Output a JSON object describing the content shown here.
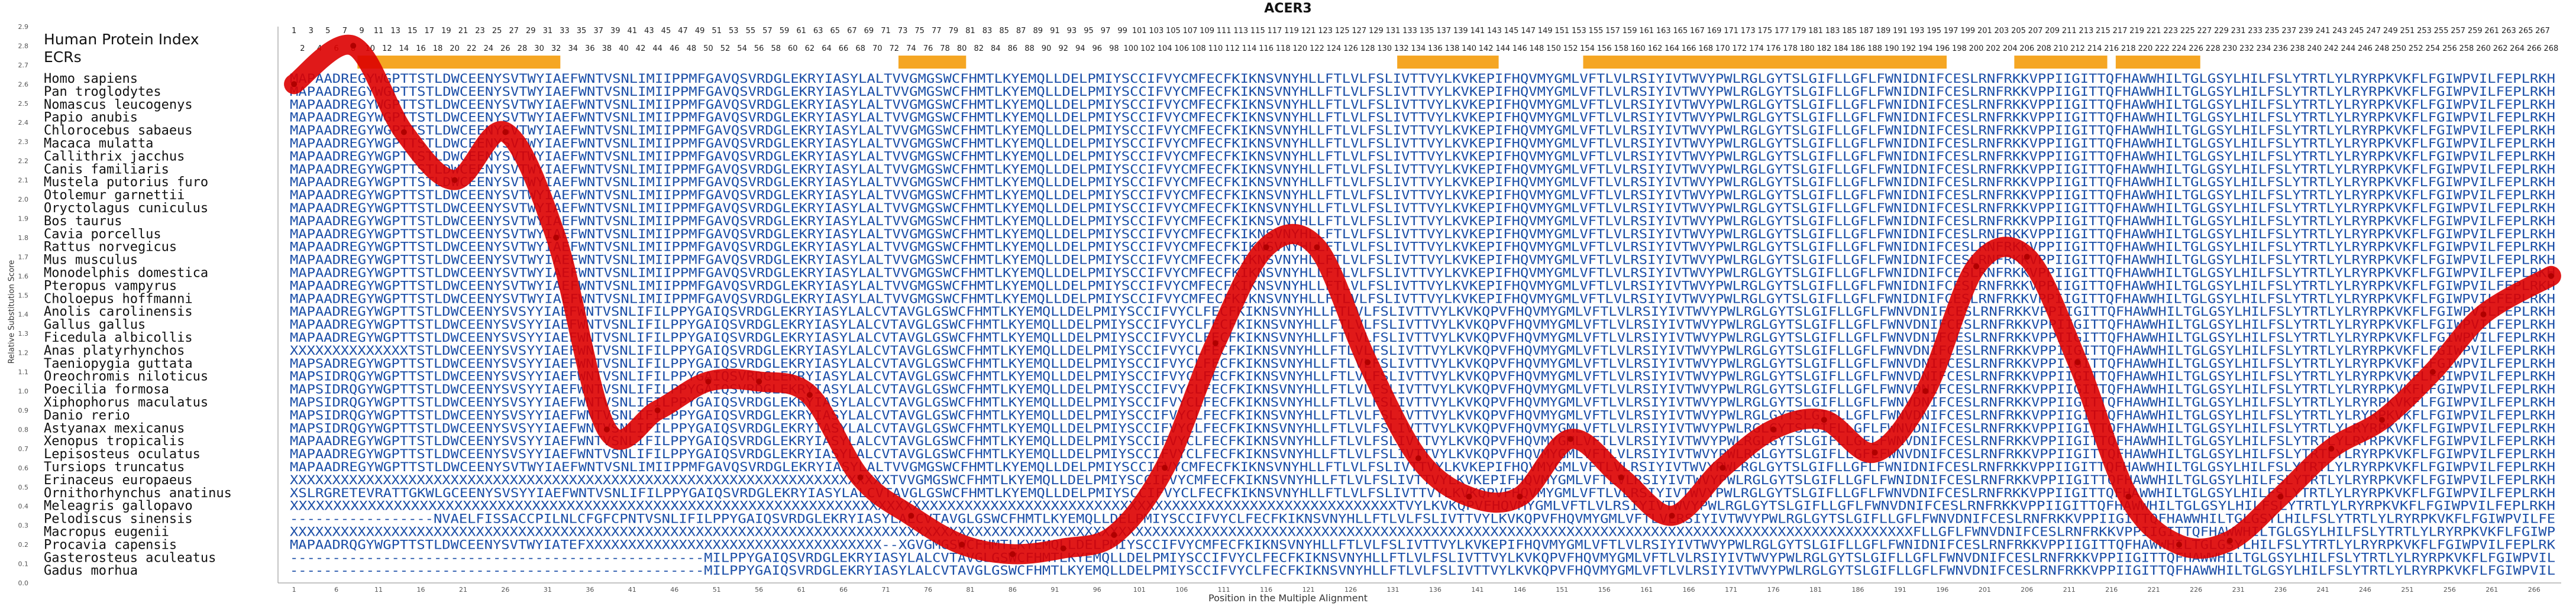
{
  "chart_data": {
    "type": "line",
    "title": "ACER3",
    "xlabel": "Position in the Multiple Alignment",
    "ylabel": "Relative Substitution Score",
    "ylim": [
      0.0,
      2.9
    ],
    "yticks": [
      "0.0",
      "0.1",
      "0.2",
      "0.3",
      "0.4",
      "0.5",
      "0.6",
      "0.7",
      "0.8",
      "0.9",
      "1.0",
      "1.1",
      "1.2",
      "1.3",
      "1.4",
      "1.5",
      "1.6",
      "1.7",
      "1.8",
      "1.9",
      "2.0",
      "2.1",
      "2.2",
      "2.3",
      "2.4",
      "2.5",
      "2.6",
      "2.7",
      "2.8",
      "2.9"
    ],
    "xlim": [
      1,
      268
    ],
    "xticks": [
      1,
      6,
      11,
      16,
      21,
      26,
      31,
      36,
      41,
      46,
      51,
      56,
      61,
      66,
      71,
      76,
      81,
      86,
      91,
      96,
      101,
      106,
      111,
      116,
      121,
      126,
      131,
      136,
      141,
      146,
      151,
      156,
      161,
      166,
      171,
      176,
      181,
      186,
      191,
      196,
      201,
      206,
      211,
      216,
      221,
      226,
      231,
      236,
      241,
      246,
      251,
      256,
      261,
      266
    ],
    "grid": false,
    "row_labels": {
      "top": "Human Protein Index",
      "second": "ECRs"
    },
    "ecr_highlight": [
      [
        9,
        32
      ],
      [
        73,
        80
      ],
      [
        132,
        143
      ],
      [
        154,
        196
      ],
      [
        205,
        215
      ],
      [
        217,
        226
      ]
    ],
    "series": [
      {
        "color": "#dd0000",
        "x": [
          1,
          8,
          14,
          20,
          26,
          32,
          38,
          44,
          50,
          56,
          62,
          68,
          74,
          80,
          86,
          92,
          98,
          104,
          110,
          116,
          122,
          128,
          134,
          140,
          146,
          152,
          158,
          164,
          170,
          176,
          182,
          188,
          194,
          200,
          206,
          212,
          218,
          224,
          230,
          236,
          242,
          248,
          254,
          260,
          268
        ],
        "y": [
          2.6,
          2.8,
          2.35,
          2.1,
          2.35,
          1.8,
          0.8,
          0.9,
          1.05,
          1.05,
          0.98,
          0.55,
          0.35,
          0.2,
          0.15,
          0.18,
          0.25,
          0.6,
          1.25,
          1.75,
          1.75,
          1.15,
          0.65,
          0.45,
          0.45,
          0.75,
          0.55,
          0.35,
          0.6,
          0.8,
          0.85,
          0.68,
          1.0,
          1.65,
          1.7,
          1.15,
          0.45,
          0.2,
          0.22,
          0.45,
          0.7,
          0.85,
          1.1,
          1.4,
          1.6
        ]
      }
    ]
  },
  "species": [
    "Homo sapiens",
    "Pan troglodytes",
    "Nomascus leucogenys",
    "Papio anubis",
    "Chlorocebus sabaeus",
    "Macaca mulatta",
    "Callithrix jacchus",
    "Canis familiaris",
    "Mustela putorius furo",
    "Otolemur garnettii",
    "Oryctolagus cuniculus",
    "Bos taurus",
    "Cavia porcellus",
    "Rattus norvegicus",
    "Mus musculus",
    "Monodelphis domestica",
    "Pteropus vampyrus",
    "Choloepus hoffmanni",
    "Anolis carolinensis",
    "Gallus gallus",
    "Ficedula albicollis",
    "Anas platyrhynchos",
    "Taeniopygia guttata",
    "Oreochromis niloticus",
    "Poecilia formosa",
    "Xiphophorus maculatus",
    "Danio rerio",
    "Astyanax mexicanus",
    "Xenopus tropicalis",
    "Lepisosteus oculatus",
    "Tursiops truncatus",
    "Erinaceus europaeus",
    "Ornithorhynchus anatinus",
    "Meleagris gallopavo",
    "Pelodiscus sinensis",
    "Macropus eugenii",
    "Procavia capensis",
    "Gasterosteus aculeatus",
    "Gadus morhua"
  ],
  "alignment": [
    "MAPAADREGYWGPTTSTLDWCEENYSVTWYIAEFWNTVSNLIMIIPPMFGAVQSVRDGLEKRYIASYLALTVVGMGSWCFHMTLKYEMQLLDELPMIYSCCIFVYCMFECFKIKNSVNYHLLFTLVLFSLIVTTVYLKVKEPIFHQVMYGMLVFTLVLRSIYIVTWVYPWLRGLGYTSLGIFLLGFLFWNIDNIFCESLRNFRKKVPPIIGITTQFHAWWHILTGLGSYLHILFSLYTRTLYLRYRPKVKFLFGIWPVILFEPLRKH",
    "MAPAADREGYWGPTTSTLDWCEENYSVTWYIAEFWNTVSNLIMIIPPMFGAVQSVRDGLEKRYIASYLALTVVGMGSWCFHMTLKYEMQLLDELPMIYSCCIFVYCMFECFKIKNSVNYHLLFTLVLFSLIVTTVYLKVKEPIFHQVMYGMLVFTLVLRSIYIVTWVYPWLRGLGYTSLGIFLLGFLFWNIDNIFCESLRNFRKKVPPIIGITTQFHAWWHILTGLGSYLHILFSLYTRTLYLRYRPKVKFLFGIWPVILFEPLRKH",
    "MAPAADREGYWGPTTSTLDWCEENYSVTWYIAEFWNTVSNLIMIIPPMFGAVQSVRDGLEKRYIASYLALTVVGMGSWCFHMTLKYEMQLLDELPMIYSCCIFVYCMFECFKIKNSVNYHLLFTLVLFSLIVTTVYLKVKEPIFHQVMYGMLVFTLVLRSIYIVTWVYPWLRGLGYTSLGIFLLGFLFWNIDNIFCESLRNFRKKVPPIIGITTQFHAWWHILTGLGSYLHILFSLYTRTLYLRYRPKVKFLFGIWPVILFEPLRKH",
    "MAPAADREGYWGPTTSTLDWCEENYSVTWYIAEFWNTVSNLIMIIPPMFGAVQSVRDGLEKRYIASYLALTVVGMGSWCFHMTLKYEMQLLDELPMIYSCCIFVYCMFECFKIKNSVNYHLLFTLVLFSLIVTTVYLKVKEPIFHQVMYGMLVFTLVLRSIYIVTWVYPWLRGLGYTSLGIFLLGFLFWNIDNIFCESLRNFRKKVPPIIGITTQFHAWWHILTGLGSYLHILFSLYTRTLYLRYRPKVKFLFGIWPVILFEPLRKH",
    "MAPAADREGYWGPTTSTLDWCEENYSVTWYIAEFWNTVSNLIMIIPPMFGAVQSVRDGLEKRYIASYLALTVVGMGSWCFHMTLKYEMQLLDELPMIYSCCIFVYCMFECFKIKNSVNYHLLFTLVLFSLIVTTVYLKVKEPIFHQVMYGMLVFTLVLRSIYIVTWVYPWLRGLGYTSLGIFLLGFLFWNIDNIFCESLRNFRKKVPPIIGITTQFHAWWHILTGLGSYLHILFSLYTRTLYLRYRPKVKFLFGIWPVILFEPLRKH",
    "MAPAADREGYWGPTTSTLDWCEENYSVTWYIAEFWNTVSNLIMIIPPMFGAVQSVRDGLEKRYIASYLALTVVGMGSWCFHMTLKYEMQLLDELPMIYSCCIFVYCMFECFKIKNSVNYHLLFTLVLFSLIVTTVYLKVKEPIFHQVMYGMLVFTLVLRSIYIVTWVYPWLRGLGYTSLGIFLLGFLFWNIDNIFCESLRNFRKKVPPIIGITTQFHAWWHILTGLGSYLHILFSLYTRTLYLRYRPKVKFLFGIWPVILFEPLRKH",
    "MAPAADREGYWGPTTSTLDWCEENYSVTWYIAEFWNTVSNLIMIIPPMFGAVQSVRDGLEKRYIASYLALTVVGMGSWCFHMTLKYEMQLLDELPMIYSCCIFVYCMFECFKIKNSVNYHLLFTLVLFSLIVTTVYLKVKEPIFHQVMYGMLVFTLVLRSIYIVTWVYPWLRGLGYTSLGIFLLGFLFWNIDNIFCESLRNFRKKVPPIIGITTQFHAWWHILTGLGSYLHILFSLYTRTLYLRYRPKVKFLFGIWPVILFEPLRKH",
    "MAPAADREGYWGPTTSTLDWCEENYSVTWYIAEFWNTVSNLIMIIPPMFGAVQSVRDGLEKRYIASYLALTVVGMGSWCFHMTLKYEMQLLDELPMIYSCCIFVYCMFECFKIKNSVNYHLLFTLVLFSLIVTTVYLKVKEPIFHQVMYGMLVFTLVLRSIYIVTWVYPWLRGLGYTSLGIFLLGFLFWNIDNIFCESLRNFRKKVPPIIGITTQFHAWWHILTGLGSYLHILFSLYTRTLYLRYRPKVKFLFGIWPVILFEPLRKH",
    "MAPAADREGYWGPTTSTLDWCEENYSVTWYIAEFWNTVSNLIMIIPPMFGAVQSVRDGLEKRYIASYLALTVVGMGSWCFHMTLKYEMQLLDELPMIYSCCIFVYCMFECFKIKNSVNYHLLFTLVLFSLIVTTVYLKVKEPIFHQVMYGMLVFTLVLRSIYIVTWVYPWLRGLGYTSLGIFLLGFLFWNIDNIFCESLRNFRKKVPPIIGITTQFHAWWHILTGLGSYLHILFSLYTRTLYLRYRPKVKFLFGIWPVILFEPLRKH",
    "MAPAADREGYWGPTTSTLDWCEENYSVTWYIAEFWNTVSNLIMIIPPMFGAVQSVRDGLEKRYIASYLALTVVGMGSWCFHMTLKYEMQLLDELPMIYSCCIFVYCMFECFKIKNSVNYHLLFTLVLFSLIVTTVYLKVKEPIFHQVMYGMLVFTLVLRSIYIVTWVYPWLRGLGYTSLGIFLLGFLFWNIDNIFCESLRNFRKKVPPIIGITTQFHAWWHILTGLGSYLHILFSLYTRTLYLRYRPKVKFLFGIWPVILFEPLRKH",
    "MAPAADREGYWGPTTSTLDWCEENYSVTWYIAEFWNTVSNLIMIIPPMFGAVQSVRDGLEKRYIASYLALTVVGMGSWCFHMTLKYEMQLLDELPMIYSCCIFVYCMFECFKIKNSVNYHLLFTLVLFSLIVTTVYLKVKEPIFHQVMYGMLVFTLVLRSIYIVTWVYPWLRGLGYTSLGIFLLGFLFWNIDNIFCESLRNFRKKVPPIIGITTQFHAWWHILTGLGSYLHILFSLYTRTLYLRYRPKVKFLFGIWPVILFEPLRKH",
    "MAPAADREGYWGPTTSTLDWCEENYSVTWYIAEFWNTVSNLIMIIPPMFGAVQSVRDGLEKRYIASYLALTVVGMGSWCFHMTLKYEMQLLDELPMIYSCCIFVYCMFECFKIKNSVNYHLLFTLVLFSLIVTTVYLKVKEPIFHQVMYGMLVFTLVLRSIYIVTWVYPWLRGLGYTSLGIFLLGFLFWNIDNIFCESLRNFRKKVPPIIGITTQFHAWWHILTGLGSYLHILFSLYTRTLYLRYRPKVKFLFGIWPVILFEPLRKH",
    "MAPAADREGYWGPTTSTLDWCEENYSVTWYIAEFWNTVSNLIMIIPPMFGAVQSVRDGLEKRYIASYLALTVVGMGSWCFHMTLKYEMQLLDELPMIYSCCIFVYCMFECFKIKNSVNYHLLFTLVLFSLIVTTVYLKVKEPIFHQVMYGMLVFTLVLRSIYIVTWVYPWLRGLGYTSLGIFLLGFLFWNIDNIFCESLRNFRKKVPPIIGITTQFHAWWHILTGLGSYLHILFSLYTRTLYLRYRPKVKFLFGIWPVILFEPLRKH",
    "MAPAADREGYWGPTTSTLDWCEENYSVTWYIAEFWNTVSNLIMIIPPMFGAVQSVRDGLEKRYIASYLALTVVGMGSWCFHMTLKYEMQLLDELPMIYSCCIFVYCMFECFKIKNSVNYHLLFTLVLFSLIVTTVYLKVKEPIFHQVMYGMLVFTLVLRSIYIVTWVYPWLRGLGYTSLGIFLLGFLFWNIDNIFCESLRNFRKKVPPIIGITTQFHAWWHILTGLGSYLHILFSLYTRTLYLRYRPKVKFLFGIWPVILFEPLRKH",
    "MAPAADREGYWGPTTSTLDWCEENYSVTWYIAEFWNTVSNLIMIIPPMFGAVQSVRDGLEKRYIASYLALTVVGMGSWCFHMTLKYEMQLLDELPMIYSCCIFVYCMFECFKIKNSVNYHLLFTLVLFSLIVTTVYLKVKEPIFHQVMYGMLVFTLVLRSIYIVTWVYPWLRGLGYTSLGIFLLGFLFWNIDNIFCESLRNFRKKVPPIIGITTQFHAWWHILTGLGSYLHILFSLYTRTLYLRYRPKVKFLFGIWPVILFEPLRKH",
    "MAPAADREGYWGPTTSTLDWCEENYSVTWYIAEFWNTVSNLIMIIPPMFGAVQSVRDGLEKRYIASYLALTVVGMGSWCFHMTLKYEMQLLDELPMIYSCCIFVYCMFECFKIKNSVNYHLLFTLVLFSLIVTTVYLKVKEPIFHQVMYGMLVFTLVLRSIYIVTWVYPWLRGLGYTSLGIFLLGFLFWNIDNIFCESLRNFRKKVPPIIGITTQFHAWWHILTGLGSYLHILFSLYTRTLYLRYRPKVKFLFGIWPVILFEPLRKH",
    "MAPAADREGYWGPTTSTLDWCEENYSVTWYIAEFWNTVSNLIMIIPPMFGAVQSVRDGLEKRYIASYLALTVVGMGSWCFHMTLKYEMQLLDELPMIYSCCIFVYCMFECFKIKNSVNYHLLFTLVLFSLIVTTVYLKVKEPIFHQVMYGMLVFTLVLRSIYIVTWVYPWLRGLGYTSLGIFLLGFLFWNIDNIFCESLRNFRKKVPPIIGITTQFHAWWHILTGLGSYLHILFSLYTRTLYLRYRPKVKFLFGIWPVILFEPLRKH",
    "MAPAADREGYWGPTTSTLDWCEENYSVTWYIAEFWNTVSNLIMIIPPMFGAVQSVRDGLEKRYIASYLALTVVGMGSWCFHMTLKYEMQLLDELPMIYSCCIFVYCMFECFKIKNSVNYHLLFTLVLFSLIVTTVYLKVKEPIFHQVMYGMLVFTLVLRSIYIVTWVYPWLRGLGYTSLGIFLLGFLFWNIDNIFCESLRNFRKKVPPIIGITTQFHAWWHILTGLGSYLHILFSLYTRTLYLRYRPKVKFLFGIWPVILFEPLRKH",
    "MAPAADREGYWGPTTSTLDWCEENYSVSYYIAEFWNTVSNLIFILPPYGAIQSVRDGLEKRYIASYLALCVTAVGLGSWCFHMTLKYEMQLLDELPMIYSCCIFVYCLFECFKIKNSVNYHLLFTLVLFSLIVTTVYLKVKQPVFHQVMYGMLVFTLVLRSIYIVTWVYPWLRGLGYTSLGIFLLGFLFWNVDNIFCESLRNFRKKVPPIIGITTQFHAWWHILTGLGSYLHILFSLYTRTLYLRYRPKVKFLFGIWPVILFEPLRKH",
    "MAPAADREGYWGPTTSTLDWCEENYSVSYYIAEFWNTVSNLIFILPPYGAIQSVRDGLEKRYIASYLALCVTAVGLGSWCFHMTLKYEMQLLDELPMIYSCCIFVYCLFECFKIKNSVNYHLLFTLVLFSLIVTTVYLKVKQPVFHQVMYGMLVFTLVLRSIYIVTWVYPWLRGLGYTSLGIFLLGFLFWNVDNIFCESLRNFRKKVPPIIGITTQFHAWWHILTGLGSYLHILFSLYTRTLYLRYRPKVKFLFGIWPVILFEPLRKH",
    "MAPAADREGYWGPTTSTLDWCEENYSVSYYIAEFWNTVSNLIFILPPYGAIQSVRDGLEKRYIASYLALCVTAVGLGSWCFHMTLKYEMQLLDELPMIYSCCIFVYCLFECFKIKNSVNYHLLFTLVLFSLIVTTVYLKVKQPVFHQVMYGMLVFTLVLRSIYIVTWVYPWLRGLGYTSLGIFLLGFLFWNVDNIFCESLRNFRKKVPPIIGITTQFHAWWHILTGLGSYLHILFSLYTRTLYLRYRPKVKFLFGIWPVILFEPLRKH",
    "XXXXXXXXXXXXXXTSTLDWCEENYSVSYYIAEFWNTVSNLIFILPPYGAIQSVRDGLEKRYIASYLALCVTAVGLGSWCFHMTLKYEMQLLDELPMIYSCCIFVYCLFECFKIKNSVNYHLLFTLVLFSLIVTTVYLKVKQPVFHQVMYGMLVFTLVLRSIYIVTWVYPWLRGLGYTSLGIFLLGFLFWNVDNIFCESLRNFRKKVPPIIGITTQFHAWWHILTGLGSYLHILFSLYTRTLYLRYRPKVKFLFGIWPVILFEPLRKH",
    "MAPSADREGYWGPTTSTLDWCEENYSVSYYIAEFWNTVSNLIFILPPYGAIQSVRDGLEKRYIASYLALCVTAVGLGSWCFHMTLKYEMQLLDELPMIYSCCIFVYCLFECFKIKNSVNYHLLFTLVLFSLIVTTVYLKVKQPVFHQVMYGMLVFTLVLRSIYIVTWVYPWLRGLGYTSLGIFLLGFLFWNVDNIFCESLRNFRKKVPPIIGITTQFHAWWHILTGLGSYLHILFSLYTRTLYLRYRPKVKFLFGIWPVILFEPLRKH",
    "MAPSIDRQGYWGPTTSTLDWCEENYSVSYYIAEFWNTVSNLIFILPPYGAIQSVRDGLEKRYIASYLALCVTAVGLGSWCFHMTLKYEMQLLDELPMIYSCCIFVYCLFECFKIKNSVNYHLLFTLVLFSLIVTTVYLKVKQPVFHQVMYGMLVFTLVLRSIYIVTWVYPWLRGLGYTSLGIFLLGFLFWNVDNIFCESLRNFRKKVPPIIGITTQFHAWWHILTGLGSYLHILFSLYTRTLYLRYRPKVKFLFGIWPVILFEPLRKH",
    "MAPSIDRQGYWGPTTSTLDWCEENYSVSYYIAEFWNTVSNLIFILPPYGAIQSVRDGLEKRYIASYLALCVTAVGLGSWCFHMTLKYEMQLLDELPMIYSCCIFVYCLFECFKIKNSVNYHLLFTLVLFSLIVTTVYLKVKQPVFHQVMYGMLVFTLVLRSIYIVTWVYPWLRGLGYTSLGIFLLGFLFWNVDNIFCESLRNFRKKVPPIIGITTQFHAWWHILTGLGSYLHILFSLYTRTLYLRYRPKVKFLFGIWPVILFEPLRKH",
    "MAPSIDRQGYWGPTTSTLDWCEENYSVSYYIAEFWNTVSNLIFILPPYGAIQSVRDGLEKRYIASYLALCVTAVGLGSWCFHMTLKYEMQLLDELPMIYSCCIFVYCLFECFKIKNSVNYHLLFTLVLFSLIVTTVYLKVKQPVFHQVMYGMLVFTLVLRSIYIVTWVYPWLRGLGYTSLGIFLLGFLFWNVDNIFCESLRNFRKKVPPIIGITTQFHAWWHILTGLGSYLHILFSLYTRTLYLRYRPKVKFLFGIWPVILFEPLRKH",
    "MAPSIDRQGYWGPTTSTLDWCEENYSVSYYIAEFWNTVSNLIFILPPYGAIQSVRDGLEKRYIASYLALCVTAVGLGSWCFHMTLKYEMQLLDELPMIYSCCIFVYCLFECFKIKNSVNYHLLFTLVLFSLIVTTVYLKVKQPVFHQVMYGMLVFTLVLRSIYIVTWVYPWLRGLGYTSLGIFLLGFLFWNVDNIFCESLRNFRKKVPPIIGITTQFHAWWHILTGLGSYLHILFSLYTRTLYLRYRPKVKFLFGIWPVILFEPLRKH",
    "MAPSIDRQGYWGPTTSTLDWCEENYSVSYYIAEFWNTVSNLIFILPPYGAIQSVRDGLEKRYIASYLALCVTAVGLGSWCFHMTLKYEMQLLDELPMIYSCCIFVYCLFECFKIKNSVNYHLLFTLVLFSLIVTTVYLKVKQPVFHQVMYGMLVFTLVLRSIYIVTWVYPWLRGLGYTSLGIFLLGFLFWNVDNIFCESLRNFRKKVPPIIGITTQFHAWWHILTGLGSYLHILFSLYTRTLYLRYRPKVKFLFGIWPVILFEPLRKH",
    "MAPAADREGYWGPTTSTLDWCEENYSVSYYIAEFWNTVSNLIFILPPYGAIQSVRDGLEKRYIASYLALCVTAVGLGSWCFHMTLKYEMQLLDELPMIYSCCIFVYCLFECFKIKNSVNYHLLFTLVLFSLIVTTVYLKVKQPVFHQVMYGMLVFTLVLRSIYIVTWVYPWLRGLGYTSLGIFLLGFLFWNVDNIFCESLRNFRKKVPPIIGITTQFHAWWHILTGLGSYLHILFSLYTRTLYLRYRPKVKFLFGIWPVILFEPLRKH",
    "MAPAADREGYWGPTTSTLDWCEENYSVSYYIAEFWNTVSNLIFILPPYGAIQSVRDGLEKRYIASYLALCVTAVGLGSWCFHMTLKYEMQLLDELPMIYSCCIFVYCLFECFKIKNSVNYHLLFTLVLFSLIVTTVYLKVKQPVFHQVMYGMLVFTLVLRSIYIVTWVYPWLRGLGYTSLGIFLLGFLFWNVDNIFCESLRNFRKKVPPIIGITTQFHAWWHILTGLGSYLHILFSLYTRTLYLRYRPKVKFLFGIWPVILFEPLRKH",
    "MAPAADREGYWGPTTSTLDWCEENYSVTWYIAEFWNTVSNLIMIIPPMFGAVQSVRDGLEKRYIASYLALTVVGMGSWCFHMTLKYEMQLLDELPMIYSCCIFVYCMFECFKIKNSVNYHLLFTLVLFSLIVTTVYLKVKEPIFHQVMYGMLVFTLVLRSIYIVTWVYPWLRGLGYTSLGIFLLGFLFWNIDNIFCESLRNFRKKVPPIIGITTQFHAWWHILTGLGSYLHILFSLYTRTLYLRYRPKVKFLFGIWPVILFEPLRKH",
    "XXXXXXXXXXXXXXXXXXXXXXXXXXXXXXXXXXXXXXXXXXXXXXXXXXXXXXXXXXXXXXXXXXXXXXXTVVGMGSWCFHMTLKYEMQLLDELPMIYSCCIFVYCMFECFKIKNSVNYHLLFTLVLFSLIVTTVYLKVKEPIFHQVMYGMLVFTLVLRSIYIVTWVYPWLRGLGYTSLGIFLLGFLFWNIDNIFCESLRNFRKKVPPIIGITTQFHAWWHILTGLGSYLHILFSLYTRTLYLRYRPKVKFLFGIWPVILFEPLRKH",
    "XSLRGRETEVRATTGKWLGCEENYSVSYYIAEFWNTVSNLIFILPPYGAIQSVRDGLEKRYIASYLALCVTAVGLGSWCFHMTLKYEMQLLDELPMIYSCCIFVYCLFECFKIKNSVNYHLLFTLVLFSLIVTTVYLKVKQPVFHQVMYGMLVFTLVLRSIYIVTWVYPWLRGLGYTSLGIFLLGFLFWNVDNIFCESLRNFRKKVPPIIGITTQFHAWWHILTGLGSYLHILFSLYTRTLYLRYRPKVKFLFGIWPVILFEPLRKH",
    "XXXXXXXXXXXXXXXXXXXXXXXXXXXXXXXXXXXXXXXXXXXXXXXXXXXXXXXXXXXXXXXXXXXXXXXXXXXXXXXXXXXXXXXXXXXXXXXXXXXXXXXXXXXXXXXXXXXXXXXXXXXXXXXXTVYLKVKQPVFHQVMYGMLVFTLVLRSIYIVTWVYPWLRGLGYTSLGIFLLGFLFWNVDNIFCESLRNFRKKVPPIIGITTQFHAWWHILTGLGSYLHILFSLYTRTLYLRYRPKVKFLFGIWPVILFEPLRKH",
    "-----------------NVAELFISSACCPILNLCFGFCPNTVSNLIFILPPYGAIQSVRDGLEKRYIASYLALCVTAVGLGSWCFHMTLKYEMQLLDELPMIYSCCIFVYCLFECFKIKNSVNYHLLFTLVLFSLIVTTVYLKVKQPVFHQVMYGMLVFTLVLRSIYIVTWVYPWLRGLGYTSLGIFLLGFLFWNVDNIFCESLRNFRKKVPPIIGITTQFHAWWHILTGLGSYLHILFSLYTRTLYLRYRPKVKFLFGIWPVILFEPLRKH",
    "XXXXXXXXXXXXXXXXXXXXXXXXXXXXXXXXXXXXXXXXXXXXXXXXXXXXXXXXXXXXXXXXXXXXXXXXXXXXXXXXXXXXXXXXXXXXXXXXXXXXXXXXXXXXXXXXXXXXXXXXXXXXXXXXXXXXXXXXXXXXXXXXXXXXXXXXXXXXXXXXXXXXXXXXXXXXXXXXXXXXXXXXXXXXXXXXFLLGFLFWNVDNIFCESLRNFRKKVPPIIGITTQFHAWWHILTGLGSYLHILFSLYTRTLYLRYRPKVKFLFGIWPVILFEPLRKH",
    "MAPAADRQGYWGPTTSTLDWCEENYSVTWYIATEFXXXXXXXXXXXXXXXXXXXXXXXXXXXXXXXXXXX--XGVGMGSWCFHMTLKYEMQLLDELPMIYSCCIFVYCMFECFKIKNSVNYHLLFTLVLFSLIVTTVYLKVKEPIFHQVMYGMLVFTLVLRSIYIVTWVYPWLRGLGYTSLGIFLLGFLFWNIDNIFCESLRNFRKKVPPIIGITTQFHAWWHILTGLGSYLHILFSLYTRTLYLRYRPKVKFLFGIWPVILFEPLRKH",
    "-------------------------------------------------MILPPYGAIQSVRDGLEKRYIASYLALCVTAVGLGSWCFHMTLKYEMQLLDELPMIYSCCIFVYCLFECFKIKNSVNYHLLFTLVLFSLIVTTVYLKVKQPVFHQVMYGMLVFTLVLRSIYIVTWVYPWLRGLGYTSLGIFLLGFLFWNVDNIFCESLRNFRKKVPPIIGITTQFHAWWHILTGLGSYLHILFSLYTRTLYLRYRPKVKFLFGIWPVILFEPLRKH",
    "-------------------------------------------------MILPPYGAIQSVRDGLEKRYIASYLALCVTAVGLGSWCFHMTLKYEMQLLDELPMIYSCCIFVYCLFECFKIKNSVNYHLLFTLVLFSLIVTTVYLKVKQPVFHQVMYGMLVFTLVLRSIYIVTWVYPWLRGLGYTSLGIFLLGFLFWNVDNIFCESLRNFRKKVPPIIGITTQFHAWWHILTGLGSYLHILFSLYTRTLYLRYRPKVKFLFGIWPVILFEPLRKH"
  ],
  "colors": {
    "residue": "#1c4fa8",
    "gap": "#555555",
    "curve": "#dd0000",
    "ecr": "#f5a623",
    "axis": "#888888"
  }
}
